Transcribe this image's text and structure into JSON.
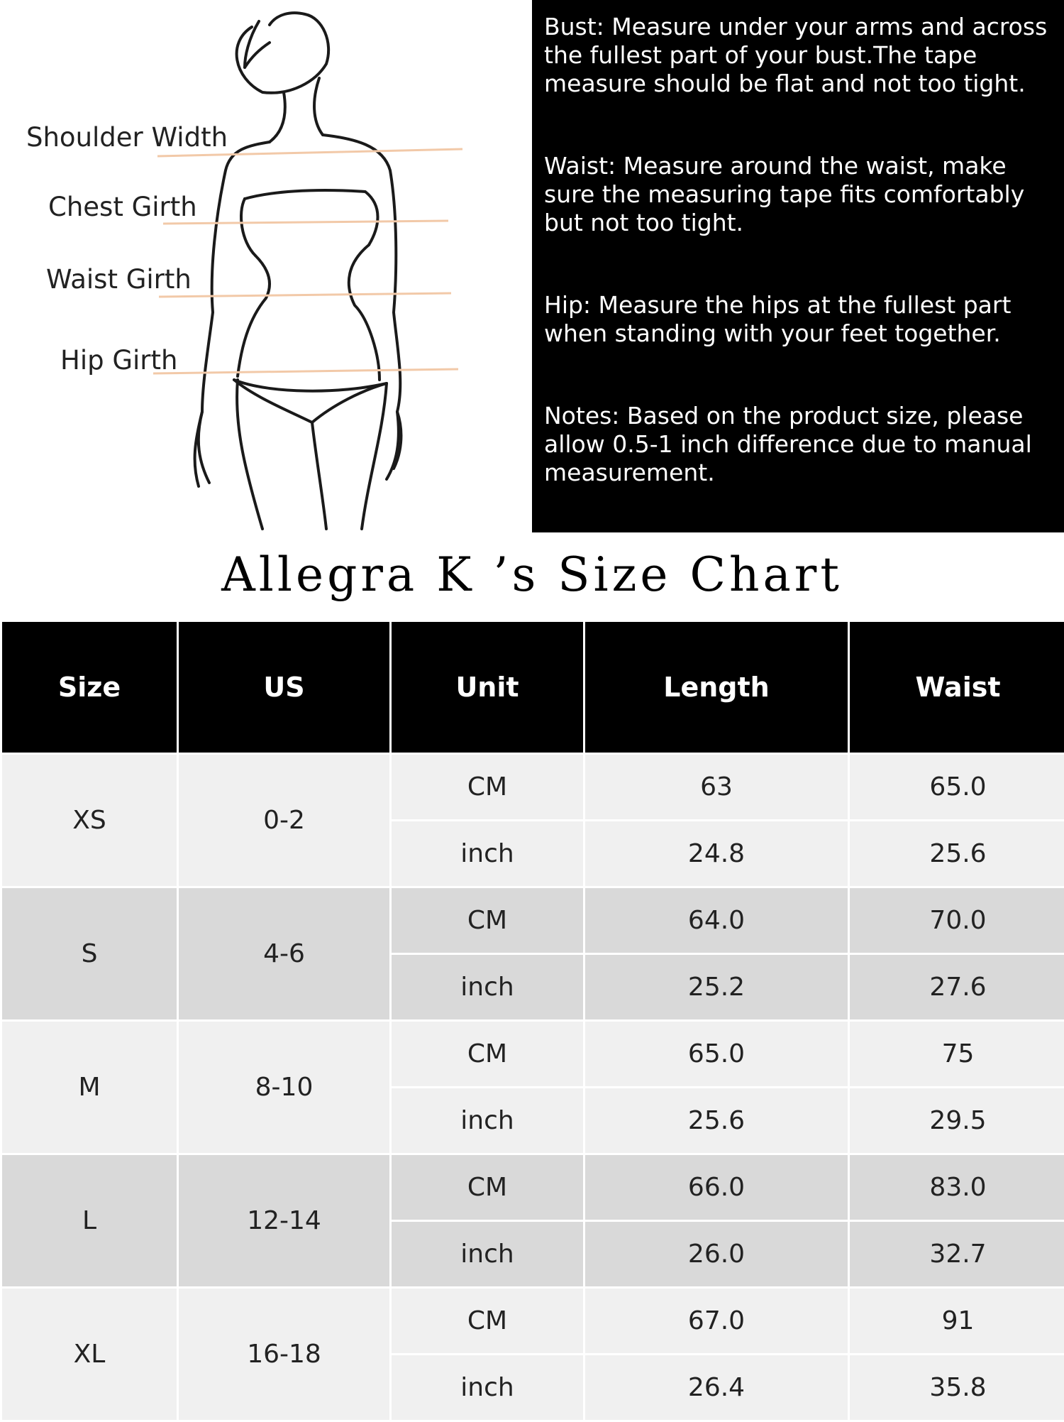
{
  "diagram": {
    "labels": {
      "shoulder": "Shoulder Width",
      "chest": "Chest Girth",
      "waist": "Waist Girth",
      "hip": "Hip Girth"
    }
  },
  "notes": {
    "bust": "Bust: Measure under your arms and across the fullest part of your bust.The tape measure should be flat and not too tight.",
    "waist": "Waist: Measure around the waist, make sure the measuring tape fits comfortably but not too tight.",
    "hip": "Hip: Measure the hips at the fullest part when standing with your feet together.",
    "notes": "Notes:  Based on the product size, please allow 0.5-1 inch difference due to manual measurement."
  },
  "title": "Allegra K ’s Size Chart",
  "table": {
    "headers": [
      "Size",
      "US",
      "Unit",
      "Length",
      "Waist"
    ],
    "rows": [
      {
        "size": "XS",
        "us": "0-2",
        "cm": {
          "unit": "CM",
          "length": "63",
          "waist": "65.0"
        },
        "inch": {
          "unit": "inch",
          "length": "24.8",
          "waist": "25.6"
        }
      },
      {
        "size": "S",
        "us": "4-6",
        "cm": {
          "unit": "CM",
          "length": "64.0",
          "waist": "70.0"
        },
        "inch": {
          "unit": "inch",
          "length": "25.2",
          "waist": "27.6"
        }
      },
      {
        "size": "M",
        "us": "8-10",
        "cm": {
          "unit": "CM",
          "length": "65.0",
          "waist": "75"
        },
        "inch": {
          "unit": "inch",
          "length": "25.6",
          "waist": "29.5"
        }
      },
      {
        "size": "L",
        "us": "12-14",
        "cm": {
          "unit": "CM",
          "length": "66.0",
          "waist": "83.0"
        },
        "inch": {
          "unit": "inch",
          "length": "26.0",
          "waist": "32.7"
        }
      },
      {
        "size": "XL",
        "us": "16-18",
        "cm": {
          "unit": "CM",
          "length": "67.0",
          "waist": "91"
        },
        "inch": {
          "unit": "inch",
          "length": "26.4",
          "waist": "35.8"
        }
      }
    ]
  },
  "colors": {
    "header_bg": "#000000",
    "row_light": "#f0f0f0",
    "row_dark": "#d9d9d9",
    "measure_line": "#f2c9a8"
  }
}
